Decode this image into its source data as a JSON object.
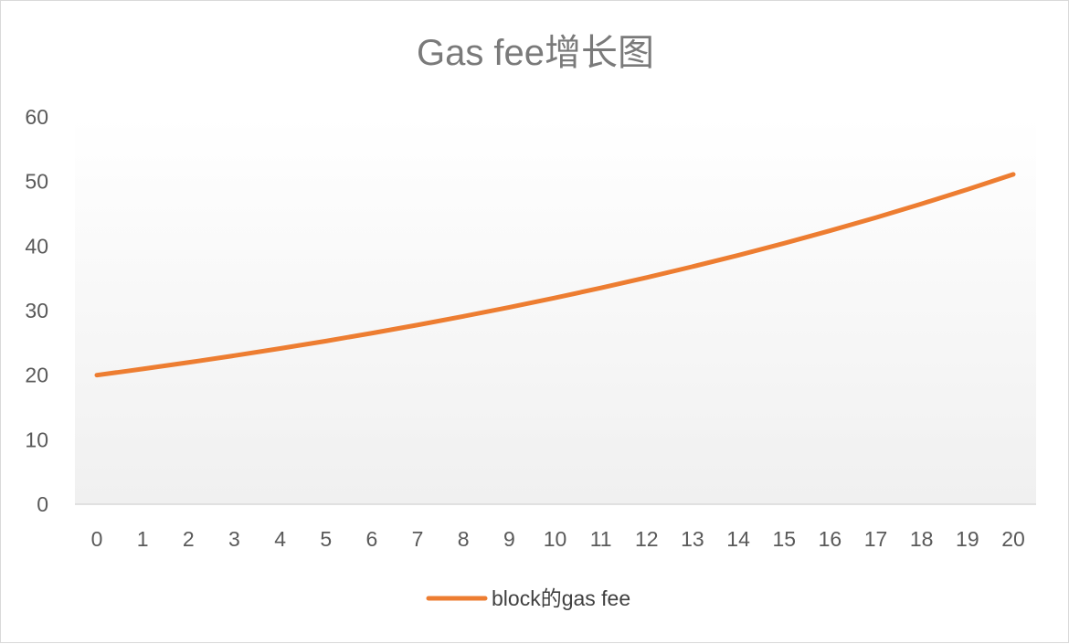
{
  "chart_data": {
    "type": "line",
    "title": "Gas fee增长图",
    "xlabel": "",
    "ylabel": "",
    "x": [
      0,
      1,
      2,
      3,
      4,
      5,
      6,
      7,
      8,
      9,
      10,
      11,
      12,
      13,
      14,
      15,
      16,
      17,
      18,
      19,
      20
    ],
    "series": [
      {
        "name": "block的gas fee",
        "color": "#ED7D31",
        "values": [
          20.0,
          20.96,
          21.97,
          23.02,
          24.13,
          25.28,
          26.5,
          27.77,
          29.11,
          30.51,
          31.97,
          33.51,
          35.12,
          36.81,
          38.57,
          40.43,
          42.37,
          44.4,
          46.54,
          48.77,
          51.11
        ]
      }
    ],
    "ylim": [
      0,
      60
    ],
    "yticks": [
      0,
      10,
      20,
      30,
      40,
      50,
      60
    ],
    "grid": false,
    "legend_position": "bottom"
  }
}
